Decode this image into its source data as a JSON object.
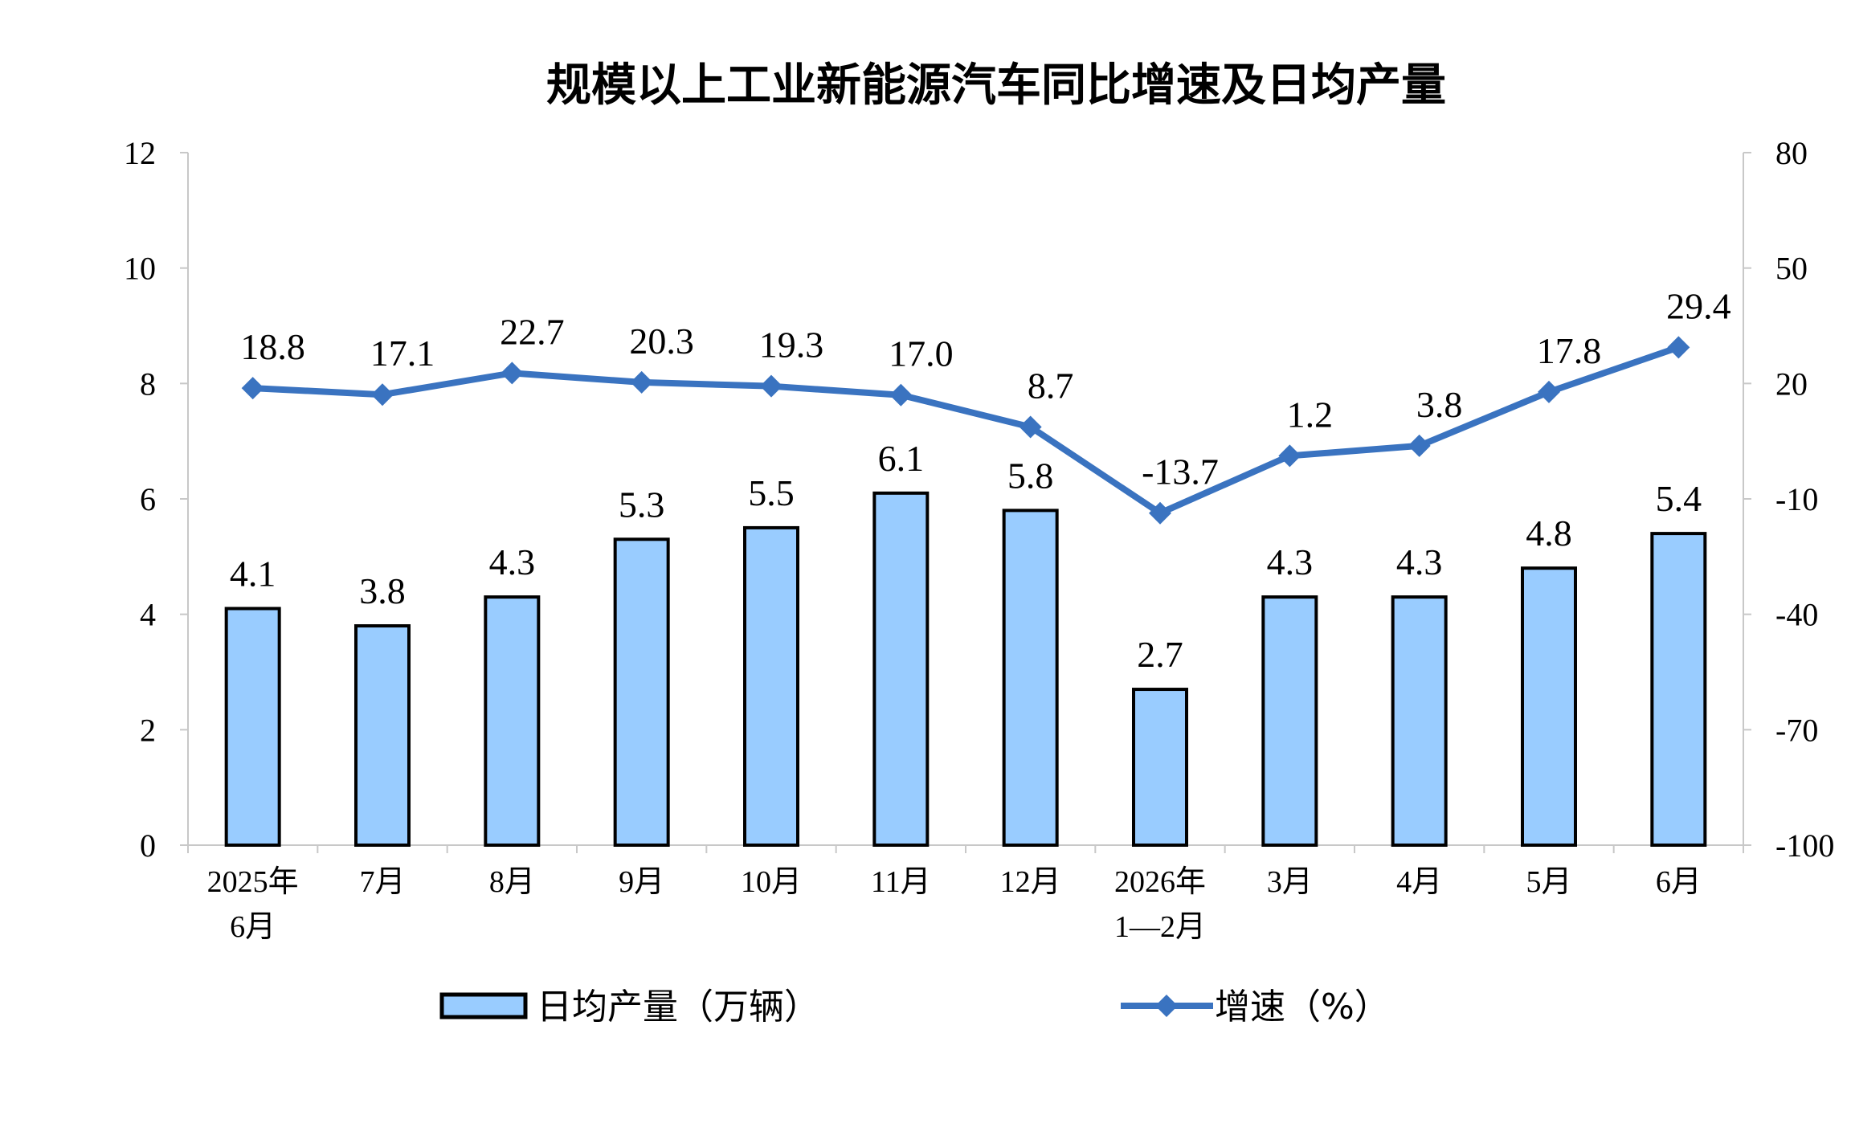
{
  "chart_data": {
    "type": "bar+line",
    "title": "规模以上工业新能源汽车同比增速及日均产量",
    "categories": [
      [
        "2025年",
        "6月"
      ],
      [
        "7月"
      ],
      [
        "8月"
      ],
      [
        "9月"
      ],
      [
        "10月"
      ],
      [
        "11月"
      ],
      [
        "12月"
      ],
      [
        "2026年",
        "1—2月"
      ],
      [
        "3月"
      ],
      [
        "4月"
      ],
      [
        "5月"
      ],
      [
        "6月"
      ]
    ],
    "left_axis": {
      "ylim": [
        0,
        12
      ],
      "ticks": [
        "0",
        "2",
        "4",
        "6",
        "8",
        "10",
        "12"
      ]
    },
    "right_axis": {
      "ylim": [
        -100,
        80
      ],
      "ticks": [
        "-100",
        "-70",
        "-40",
        "-10",
        "20",
        "50",
        "80"
      ]
    },
    "grid": false,
    "legend_position": "bottom",
    "series": [
      {
        "name": "日均产量（万辆）",
        "type": "bar",
        "axis": "left",
        "color": "#99ccff",
        "values": [
          4.1,
          3.8,
          4.3,
          5.3,
          5.5,
          6.1,
          5.8,
          2.7,
          4.3,
          4.3,
          4.8,
          5.4
        ],
        "labels": [
          "4.1",
          "3.8",
          "4.3",
          "5.3",
          "5.5",
          "6.1",
          "5.8",
          "2.7",
          "4.3",
          "4.3",
          "4.8",
          "5.4"
        ]
      },
      {
        "name": "增速（%）",
        "type": "line",
        "axis": "right",
        "color": "#3a73c0",
        "marker": "diamond",
        "values": [
          18.8,
          17.1,
          22.7,
          20.3,
          19.3,
          17.0,
          8.7,
          -13.7,
          1.2,
          3.8,
          17.8,
          29.4
        ],
        "labels": [
          "18.8",
          "17.1",
          "22.7",
          "20.3",
          "19.3",
          "17.0",
          "8.7",
          "-13.7",
          "1.2",
          "3.8",
          "17.8",
          "29.4"
        ]
      }
    ]
  }
}
